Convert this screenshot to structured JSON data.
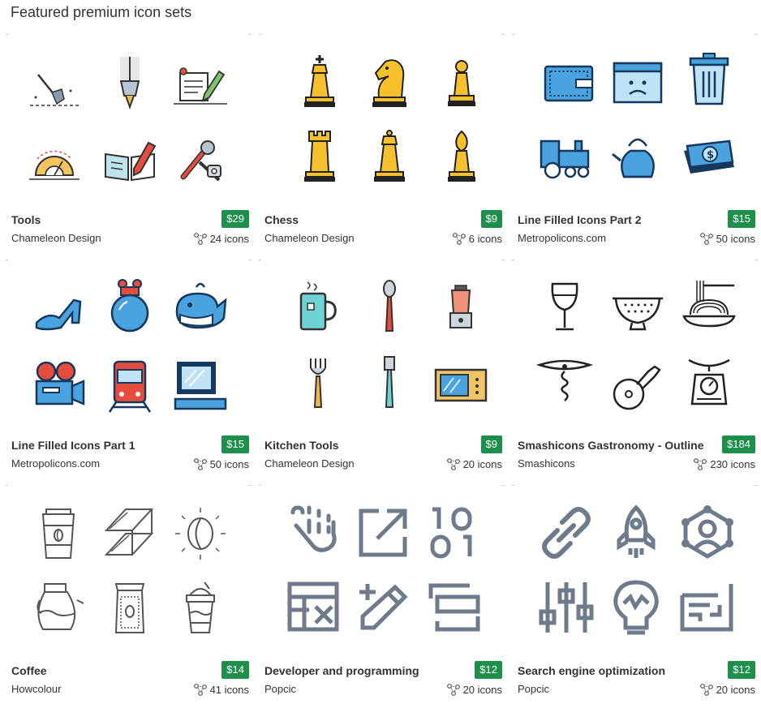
{
  "page": {
    "heading": "Featured premium icon sets"
  },
  "cards": [
    {
      "title": "Tools",
      "author": "Chameleon Design",
      "price": "$29",
      "count": "24 icons",
      "icons": [
        "shovel-icon",
        "brush-icon",
        "document-pen-icon",
        "protractor-icon",
        "book-pencil-icon",
        "wrench-screwdriver-icon"
      ]
    },
    {
      "title": "Chess",
      "author": "Chameleon Design",
      "price": "$9",
      "count": "6 icons",
      "icons": [
        "chess-king-icon",
        "chess-knight-icon",
        "chess-pawn-icon",
        "chess-rook-icon",
        "chess-queen-icon",
        "chess-bishop-icon"
      ]
    },
    {
      "title": "Line Filled Icons Part 2",
      "author": "Metropolicons.com",
      "price": "$15",
      "count": "50 icons",
      "icons": [
        "wallet-icon",
        "error-window-icon",
        "trash-can-icon",
        "locomotive-icon",
        "kettle-icon",
        "money-icon"
      ]
    },
    {
      "title": "Line Filled Icons Part 1",
      "author": "Metropolicons.com",
      "price": "$15",
      "count": "50 icons",
      "icons": [
        "high-heel-icon",
        "potion-bottle-icon",
        "whale-icon",
        "film-camera-icon",
        "train-icon",
        "computer-icon"
      ]
    },
    {
      "title": "Kitchen Tools",
      "author": "Chameleon Design",
      "price": "$9",
      "count": "20 icons",
      "icons": [
        "tea-mug-icon",
        "spoon-icon",
        "blender-icon",
        "fork-icon",
        "spatula-icon",
        "microwave-icon"
      ]
    },
    {
      "title": "Smashicons Gastronomy - Outline",
      "author": "Smashicons",
      "price": "$184",
      "count": "230 icons",
      "icons": [
        "wine-glass-icon",
        "colander-icon",
        "spaghetti-icon",
        "corkscrew-icon",
        "pizza-cutter-icon",
        "kitchen-scale-icon"
      ]
    },
    {
      "title": "Coffee",
      "author": "Howcolour",
      "price": "$14",
      "count": "41 icons",
      "icons": [
        "coffee-cup-icon",
        "coffee-filter-icon",
        "coffee-bean-icon",
        "coffee-pot-icon",
        "coffee-bag-icon",
        "frappe-icon"
      ]
    },
    {
      "title": "Developer and programming",
      "author": "Popcic",
      "price": "$12",
      "count": "20 icons",
      "icons": [
        "touch-hand-icon",
        "external-link-icon",
        "binary-icon",
        "spreadsheet-delete-icon",
        "edit-pencil-icon",
        "stacked-layers-icon"
      ]
    },
    {
      "title": "Search engine optimization",
      "author": "Popcic",
      "price": "$12",
      "count": "20 icons",
      "icons": [
        "link-icon",
        "rocket-icon",
        "network-user-icon",
        "equalizer-icon",
        "lightbulb-icon",
        "report-chart-icon"
      ]
    }
  ],
  "colors": {
    "price_badge": "#1e8f4b",
    "text": "#333333",
    "outline": "#444444",
    "popcic_gray": "#6f7a8a"
  }
}
